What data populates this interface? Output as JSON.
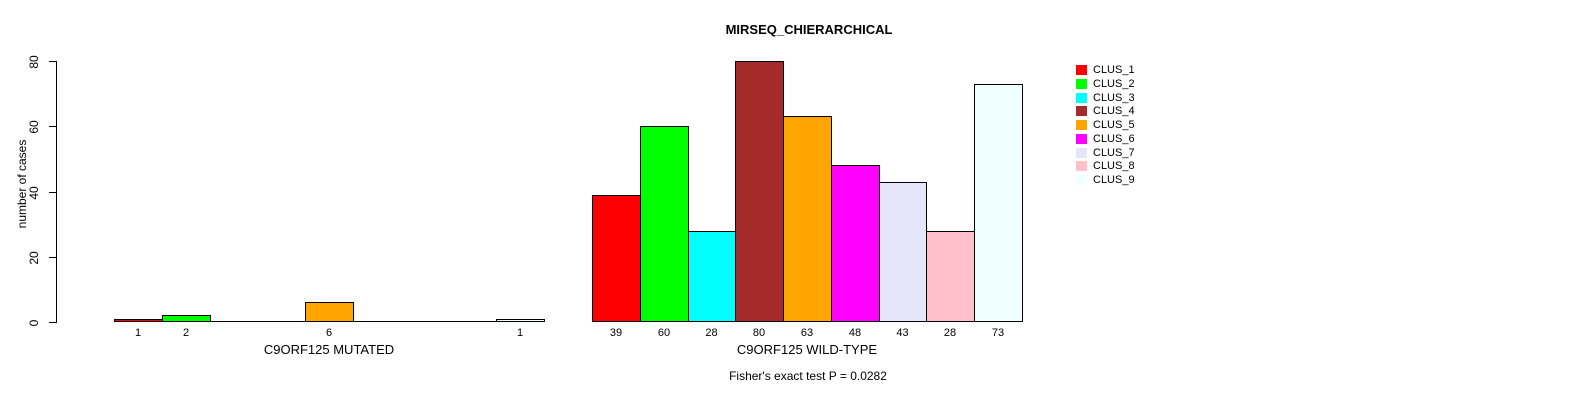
{
  "chart_data": {
    "type": "bar",
    "title": "MIRSEQ_CHIERARCHICAL",
    "ylabel": "number of cases",
    "ylim": [
      0,
      80
    ],
    "yticks": [
      0,
      20,
      40,
      60,
      80
    ],
    "grid": false,
    "legend_position": "right",
    "annotation": "Fisher's exact test P = 0.0282",
    "categories": [
      "CLUS_1",
      "CLUS_2",
      "CLUS_3",
      "CLUS_4",
      "CLUS_5",
      "CLUS_6",
      "CLUS_7",
      "CLUS_8",
      "CLUS_9"
    ],
    "legend": [
      {
        "label": "CLUS_1",
        "color": "#FF0000"
      },
      {
        "label": "CLUS_2",
        "color": "#00FF00"
      },
      {
        "label": "CLUS_3",
        "color": "#00FFFF"
      },
      {
        "label": "CLUS_4",
        "color": "#A52A2A"
      },
      {
        "label": "CLUS_5",
        "color": "#FFA500"
      },
      {
        "label": "CLUS_6",
        "color": "#FF00FF"
      },
      {
        "label": "CLUS_7",
        "color": "#E6E6FA"
      },
      {
        "label": "CLUS_8",
        "color": "#FFC0CB"
      },
      {
        "label": "CLUS_9",
        "color": "#F0FFFF"
      }
    ],
    "groups": [
      {
        "label": "C9ORF125 MUTATED",
        "values": [
          1,
          2,
          0,
          0,
          6,
          0,
          0,
          0,
          1
        ]
      },
      {
        "label": "C9ORF125 WILD-TYPE",
        "values": [
          39,
          60,
          28,
          80,
          63,
          48,
          43,
          28,
          73
        ]
      }
    ],
    "bar_value_labels_shown": "nonzero only"
  }
}
